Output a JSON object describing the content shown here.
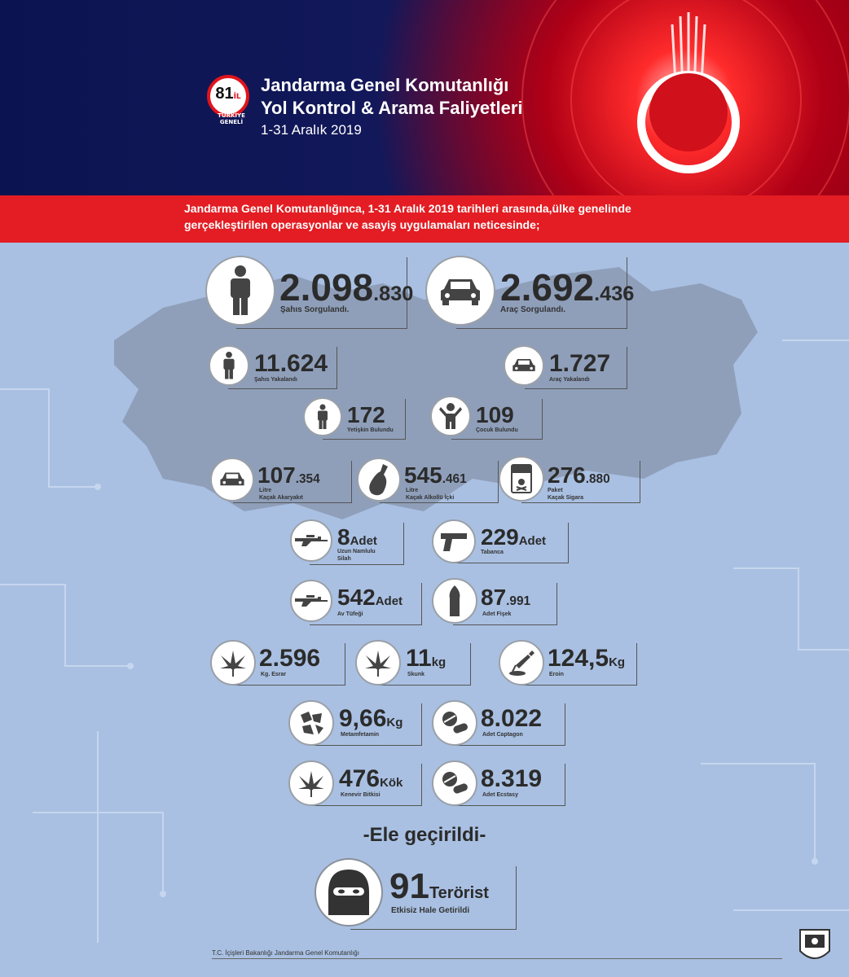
{
  "header": {
    "logo_number": "81",
    "logo_il": "İL",
    "logo_sub": "TÜRKİYE GENELİ",
    "title_line1": "Jandarma Genel Komutanlığı",
    "title_line2": "Yol Kontrol & Arama Faliyetleri",
    "date": "1-31 Aralık 2019"
  },
  "intro": {
    "line1": "Jandarma Genel Komutanlığınca, 1-31 Aralık 2019 tarihleri arasında,ülke genelinde",
    "line2": "gerçekleştirilen operasyonlar ve asayiş uygulamaları neticesinde;"
  },
  "stats": {
    "sahis_sorgu": {
      "value_main": "2.098",
      "value_small": ".830",
      "label": "Şahıs Sorgulandı.",
      "icon": "person-icon"
    },
    "arac_sorgu": {
      "value_main": "2.692",
      "value_small": ".436",
      "label": "Araç Sorgulandı.",
      "icon": "car-icon"
    },
    "sahis_yakala": {
      "value_main": "11.624",
      "value_small": "",
      "label": "Şahıs Yakalandı",
      "icon": "person-icon"
    },
    "arac_yakala": {
      "value_main": "1.727",
      "value_small": "",
      "label": "Araç Yakalandı",
      "icon": "car-icon"
    },
    "yetiskin": {
      "value_main": "172",
      "value_small": "",
      "label": "Yetişkin Bulundu",
      "icon": "person-icon"
    },
    "cocuk": {
      "value_main": "109",
      "value_small": "",
      "label": "Çocuk Bulundu",
      "icon": "child-icon"
    },
    "akaryakit": {
      "value_main": "107",
      "value_small": ".354",
      "label1": "Litre",
      "label2": "Kaçak Akaryakıt",
      "icon": "car-icon"
    },
    "alkol": {
      "value_main": "545",
      "value_small": ".461",
      "label1": "Litre",
      "label2": "Kaçak Alkollü İçki",
      "icon": "bottle-icon"
    },
    "sigara": {
      "value_main": "276",
      "value_small": ".880",
      "label1": "Paket",
      "label2": "Kaçak Sigara",
      "icon": "cigarette-pack-icon"
    },
    "uzun_silah": {
      "value_main": "8",
      "unit": "Adet",
      "label1": "Uzun Namlulu",
      "label2": "Silah",
      "icon": "rifle-icon"
    },
    "tabanca": {
      "value_main": "229",
      "unit": "Adet",
      "label": "Tabanca",
      "icon": "pistol-icon"
    },
    "av_tufegi": {
      "value_main": "542",
      "unit": "Adet",
      "label": "Av Tüfeği",
      "icon": "rifle-icon"
    },
    "fisek": {
      "value_main": "87",
      "value_small": ".991",
      "label": "Adet Fişek",
      "icon": "bullet-icon"
    },
    "esrar": {
      "value_main": "2.596",
      "label": "Kg. Esrar",
      "icon": "cannabis-leaf-icon"
    },
    "skunk": {
      "value_main": "11",
      "unit": "kg",
      "label": "Skunk",
      "icon": "cannabis-leaf-icon"
    },
    "eroin": {
      "value_main": "124,5",
      "unit": "Kg",
      "label": "Eroin",
      "icon": "syringe-icon"
    },
    "metamfetamin": {
      "value_main": "9,66",
      "unit": "Kg",
      "label": "Metamfetamin",
      "icon": "crystal-icon"
    },
    "captagon": {
      "value_main": "8.022",
      "label": "Adet Captagon",
      "icon": "pills-icon"
    },
    "kenevir": {
      "value_main": "476",
      "unit": "Kök",
      "label": "Kenevir Bitkisi",
      "icon": "cannabis-leaf-icon"
    },
    "ecstasy": {
      "value_main": "8.319",
      "label": "Adet Ecstasy",
      "icon": "pills-icon"
    },
    "terorist": {
      "value_main": "91",
      "unit": "Terörist",
      "label": "Etkisiz Hale Getirildi",
      "icon": "masked-face-icon"
    }
  },
  "seized_heading": "-Ele geçirildi-",
  "footer": "T.C. İçişleri Bakanlığı Jandarma Genel Komutanlığı",
  "colors": {
    "red": "#e31d23",
    "navy": "#0b1450",
    "map_bg": "#a9c0e2",
    "map_land": "#8c9bb6"
  }
}
